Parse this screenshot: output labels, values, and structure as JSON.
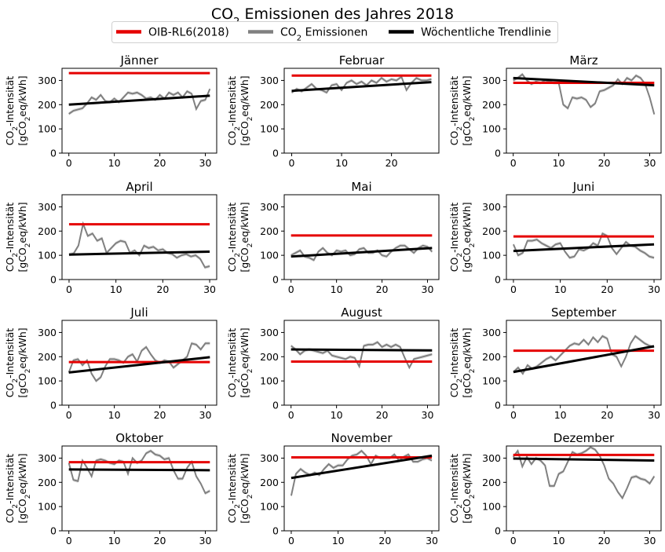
{
  "figure": {
    "title_main": "CO",
    "title_sub": "2",
    "title_rest": " Emissionen des Jahres 2018"
  },
  "legend": [
    {
      "label": "OIB-RL6(2018)",
      "color": "#e50000"
    },
    {
      "label_main": "CO",
      "label_sub": "2",
      "label_rest": " Emissionen",
      "color": "#808080"
    },
    {
      "label": "Wöchentliche Trendlinie",
      "color": "#000000"
    }
  ],
  "ylabel": {
    "line1_main": "CO",
    "line1_sub": "2",
    "line1_rest": "-Intensität",
    "line2_pre": "[gCO",
    "line2_sub": "2",
    "line2_rest": "eq/kWh]"
  },
  "colors": {
    "reference": "#e50000",
    "emissions": "#808080",
    "band": "#d9d9d9",
    "trend": "#000000"
  },
  "chart_data": [
    {
      "type": "line",
      "title": "Jänner",
      "xlim": [
        -1.5,
        32.5
      ],
      "ylim": [
        0,
        350
      ],
      "xticks": [
        0,
        10,
        20,
        30
      ],
      "yticks": [
        0,
        100,
        200,
        300
      ],
      "reference": 330,
      "trend": [
        [
          0,
          200
        ],
        [
          31,
          237
        ]
      ],
      "x": [
        0,
        1,
        2,
        3,
        4,
        5,
        6,
        7,
        8,
        9,
        10,
        11,
        12,
        13,
        14,
        15,
        16,
        17,
        18,
        19,
        20,
        21,
        22,
        23,
        24,
        25,
        26,
        27,
        28,
        29,
        30,
        31
      ],
      "values": [
        162,
        175,
        180,
        185,
        205,
        230,
        220,
        240,
        215,
        210,
        225,
        210,
        230,
        250,
        245,
        250,
        240,
        225,
        230,
        220,
        240,
        225,
        250,
        240,
        250,
        230,
        255,
        245,
        182,
        215,
        220,
        265
      ]
    },
    {
      "type": "line",
      "title": "Februar",
      "xlim": [
        -1.5,
        29.5
      ],
      "ylim": [
        0,
        350
      ],
      "xticks": [
        0,
        10,
        20
      ],
      "yticks": [
        0,
        100,
        200,
        300
      ],
      "reference": 320,
      "trend": [
        [
          0,
          257
        ],
        [
          28,
          293
        ]
      ],
      "x": [
        0,
        1,
        2,
        3,
        4,
        5,
        6,
        7,
        8,
        9,
        10,
        11,
        12,
        13,
        14,
        15,
        16,
        17,
        18,
        19,
        20,
        21,
        22,
        23,
        24,
        25,
        26,
        27,
        28
      ],
      "values": [
        250,
        265,
        255,
        270,
        285,
        265,
        260,
        250,
        280,
        285,
        260,
        290,
        300,
        285,
        295,
        280,
        300,
        290,
        310,
        295,
        305,
        300,
        315,
        260,
        290,
        310,
        300,
        300,
        305
      ]
    },
    {
      "type": "line",
      "title": "März",
      "xlim": [
        -1.5,
        32.5
      ],
      "ylim": [
        0,
        350
      ],
      "xticks": [
        0,
        10,
        20,
        30
      ],
      "yticks": [
        0,
        100,
        200,
        300
      ],
      "reference": 290,
      "trend": [
        [
          0,
          310
        ],
        [
          31,
          280
        ]
      ],
      "x": [
        0,
        1,
        2,
        3,
        4,
        5,
        6,
        7,
        8,
        9,
        10,
        11,
        12,
        13,
        14,
        15,
        16,
        17,
        18,
        19,
        20,
        21,
        22,
        23,
        24,
        25,
        26,
        27,
        28,
        29,
        30,
        31
      ],
      "values": [
        300,
        310,
        325,
        300,
        285,
        295,
        290,
        300,
        295,
        290,
        290,
        200,
        185,
        230,
        225,
        230,
        220,
        190,
        205,
        255,
        260,
        270,
        280,
        305,
        285,
        310,
        300,
        320,
        310,
        285,
        230,
        160
      ]
    },
    {
      "type": "line",
      "title": "April",
      "xlim": [
        -1.5,
        31.5
      ],
      "ylim": [
        0,
        350
      ],
      "xticks": [
        0,
        10,
        20,
        30
      ],
      "yticks": [
        0,
        100,
        200,
        300
      ],
      "reference": 228,
      "trend": [
        [
          0,
          103
        ],
        [
          30,
          115
        ]
      ],
      "x": [
        0,
        1,
        2,
        3,
        4,
        5,
        6,
        7,
        8,
        9,
        10,
        11,
        12,
        13,
        14,
        15,
        16,
        17,
        18,
        19,
        20,
        21,
        22,
        23,
        24,
        25,
        26,
        27,
        28,
        29,
        30
      ],
      "values": [
        103,
        108,
        140,
        230,
        180,
        190,
        160,
        170,
        110,
        130,
        150,
        160,
        155,
        110,
        120,
        100,
        140,
        130,
        135,
        120,
        125,
        110,
        105,
        90,
        100,
        105,
        95,
        100,
        85,
        50,
        55
      ]
    },
    {
      "type": "line",
      "title": "Mai",
      "xlim": [
        -1.5,
        32.5
      ],
      "ylim": [
        0,
        350
      ],
      "xticks": [
        0,
        10,
        20,
        30
      ],
      "yticks": [
        0,
        100,
        200,
        300
      ],
      "reference": 182,
      "trend": [
        [
          0,
          95
        ],
        [
          31,
          130
        ]
      ],
      "x": [
        0,
        1,
        2,
        3,
        4,
        5,
        6,
        7,
        8,
        9,
        10,
        11,
        12,
        13,
        14,
        15,
        16,
        17,
        18,
        19,
        20,
        21,
        22,
        23,
        24,
        25,
        26,
        27,
        28,
        29,
        30,
        31
      ],
      "values": [
        100,
        110,
        120,
        95,
        90,
        80,
        115,
        130,
        110,
        100,
        120,
        115,
        120,
        100,
        105,
        125,
        130,
        110,
        110,
        120,
        100,
        95,
        115,
        130,
        140,
        140,
        125,
        110,
        130,
        140,
        135,
        115
      ]
    },
    {
      "type": "line",
      "title": "Juni",
      "xlim": [
        -1.5,
        31.5
      ],
      "ylim": [
        0,
        350
      ],
      "xticks": [
        0,
        10,
        20,
        30
      ],
      "yticks": [
        0,
        100,
        200,
        300
      ],
      "reference": 178,
      "trend": [
        [
          0,
          118
        ],
        [
          30,
          145
        ]
      ],
      "x": [
        0,
        1,
        2,
        3,
        4,
        5,
        6,
        7,
        8,
        9,
        10,
        11,
        12,
        13,
        14,
        15,
        16,
        17,
        18,
        19,
        20,
        21,
        22,
        23,
        24,
        25,
        26,
        27,
        28,
        29,
        30
      ],
      "values": [
        145,
        100,
        110,
        160,
        160,
        165,
        150,
        140,
        130,
        145,
        150,
        115,
        90,
        95,
        125,
        120,
        130,
        150,
        140,
        190,
        180,
        130,
        105,
        130,
        155,
        140,
        135,
        120,
        110,
        95,
        90
      ]
    },
    {
      "type": "line",
      "title": "Juli",
      "xlim": [
        -1.5,
        32.5
      ],
      "ylim": [
        0,
        350
      ],
      "xticks": [
        0,
        10,
        20,
        30
      ],
      "yticks": [
        0,
        100,
        200,
        300
      ],
      "reference": 178,
      "trend": [
        [
          0,
          135
        ],
        [
          31,
          198
        ]
      ],
      "x": [
        0,
        1,
        2,
        3,
        4,
        5,
        6,
        7,
        8,
        9,
        10,
        11,
        12,
        13,
        14,
        15,
        16,
        17,
        18,
        19,
        20,
        21,
        22,
        23,
        24,
        25,
        26,
        27,
        28,
        29,
        30,
        31
      ],
      "values": [
        135,
        185,
        190,
        165,
        185,
        130,
        100,
        115,
        160,
        190,
        190,
        185,
        175,
        200,
        210,
        180,
        225,
        240,
        210,
        185,
        175,
        185,
        180,
        155,
        170,
        185,
        200,
        255,
        250,
        230,
        255,
        255
      ]
    },
    {
      "type": "line",
      "title": "August",
      "xlim": [
        -1.5,
        32.5
      ],
      "ylim": [
        0,
        350
      ],
      "xticks": [
        0,
        10,
        20,
        30
      ],
      "yticks": [
        0,
        100,
        200,
        300
      ],
      "reference": 180,
      "trend": [
        [
          0,
          230
        ],
        [
          31,
          226
        ]
      ],
      "x": [
        0,
        1,
        2,
        3,
        4,
        5,
        6,
        7,
        8,
        9,
        10,
        11,
        12,
        13,
        14,
        15,
        16,
        17,
        18,
        19,
        20,
        21,
        22,
        23,
        24,
        25,
        26,
        27,
        28,
        29,
        30,
        31
      ],
      "values": [
        245,
        230,
        210,
        225,
        230,
        225,
        220,
        215,
        225,
        205,
        200,
        195,
        190,
        200,
        195,
        160,
        245,
        250,
        250,
        260,
        240,
        250,
        240,
        250,
        240,
        195,
        155,
        190,
        195,
        200,
        205,
        210
      ]
    },
    {
      "type": "line",
      "title": "September",
      "xlim": [
        -1.5,
        31.5
      ],
      "ylim": [
        0,
        350
      ],
      "xticks": [
        0,
        10,
        20,
        30
      ],
      "yticks": [
        0,
        100,
        200,
        300
      ],
      "reference": 225,
      "trend": [
        [
          0,
          137
        ],
        [
          30,
          243
        ]
      ],
      "x": [
        0,
        1,
        2,
        3,
        4,
        5,
        6,
        7,
        8,
        9,
        10,
        11,
        12,
        13,
        14,
        15,
        16,
        17,
        18,
        19,
        20,
        21,
        22,
        23,
        24,
        25,
        26,
        27,
        28,
        29,
        30
      ],
      "values": [
        137,
        155,
        130,
        165,
        150,
        160,
        175,
        190,
        200,
        185,
        205,
        225,
        245,
        255,
        250,
        270,
        250,
        280,
        260,
        285,
        275,
        210,
        200,
        160,
        200,
        255,
        285,
        270,
        255,
        245,
        240
      ]
    },
    {
      "type": "line",
      "title": "Oktober",
      "xlim": [
        -1.5,
        32.5
      ],
      "ylim": [
        0,
        350
      ],
      "xticks": [
        0,
        10,
        20,
        30
      ],
      "yticks": [
        0,
        100,
        200,
        300
      ],
      "reference": 283,
      "trend": [
        [
          0,
          253
        ],
        [
          31,
          250
        ]
      ],
      "x": [
        0,
        1,
        2,
        3,
        4,
        5,
        6,
        7,
        8,
        9,
        10,
        11,
        12,
        13,
        14,
        15,
        16,
        17,
        18,
        19,
        20,
        21,
        22,
        23,
        24,
        25,
        26,
        27,
        28,
        29,
        30,
        31
      ],
      "values": [
        280,
        210,
        205,
        290,
        260,
        225,
        290,
        295,
        290,
        280,
        275,
        290,
        285,
        235,
        300,
        280,
        290,
        320,
        330,
        315,
        310,
        295,
        300,
        250,
        215,
        215,
        260,
        285,
        225,
        195,
        155,
        165
      ]
    },
    {
      "type": "line",
      "title": "November",
      "xlim": [
        -1.5,
        31.5
      ],
      "ylim": [
        0,
        350
      ],
      "xticks": [
        0,
        10,
        20,
        30
      ],
      "yticks": [
        0,
        100,
        200,
        300
      ],
      "reference": 303,
      "trend": [
        [
          0,
          218
        ],
        [
          30,
          310
        ]
      ],
      "x": [
        0,
        1,
        2,
        3,
        4,
        5,
        6,
        7,
        8,
        9,
        10,
        11,
        12,
        13,
        14,
        15,
        16,
        17,
        18,
        19,
        20,
        21,
        22,
        23,
        24,
        25,
        26,
        27,
        28,
        29,
        30
      ],
      "values": [
        145,
        235,
        255,
        240,
        230,
        240,
        230,
        255,
        275,
        260,
        270,
        270,
        295,
        310,
        315,
        330,
        310,
        275,
        310,
        300,
        300,
        300,
        315,
        290,
        305,
        315,
        285,
        285,
        295,
        300,
        290
      ]
    },
    {
      "type": "line",
      "title": "Dezember",
      "xlim": [
        -1.5,
        32.5
      ],
      "ylim": [
        0,
        350
      ],
      "xticks": [
        0,
        10,
        20,
        30
      ],
      "yticks": [
        0,
        100,
        200,
        300
      ],
      "reference": 313,
      "trend": [
        [
          0,
          298
        ],
        [
          31,
          290
        ]
      ],
      "x": [
        0,
        1,
        2,
        3,
        4,
        5,
        6,
        7,
        8,
        9,
        10,
        11,
        12,
        13,
        14,
        15,
        16,
        17,
        18,
        19,
        20,
        21,
        22,
        23,
        24,
        25,
        26,
        27,
        28,
        29,
        30,
        31
      ],
      "values": [
        305,
        330,
        265,
        305,
        275,
        300,
        290,
        270,
        185,
        185,
        235,
        245,
        285,
        325,
        315,
        320,
        330,
        345,
        335,
        310,
        270,
        215,
        195,
        160,
        135,
        175,
        220,
        225,
        215,
        210,
        195,
        225
      ]
    }
  ]
}
